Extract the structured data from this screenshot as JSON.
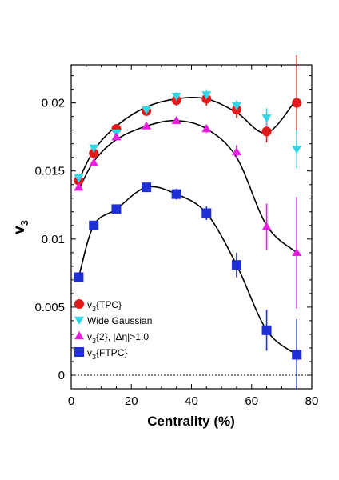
{
  "chart_data": {
    "type": "scatter",
    "xlabel": "Centrality (%)",
    "ylabel_main": "v",
    "ylabel_sub": "3",
    "xlim": [
      0,
      80
    ],
    "ylim": [
      -0.001,
      0.0228
    ],
    "xticks": [
      0,
      20,
      40,
      60,
      80
    ],
    "yticks": [
      0,
      0.005,
      0.01,
      0.015,
      0.02
    ],
    "ytick_labels": [
      "0",
      "0.005",
      "0.01",
      "0.015",
      "0.02"
    ],
    "grid": false,
    "legend_position": "bottom-left",
    "zero_line": true,
    "series": [
      {
        "legend": {
          "prefix": "v",
          "sub": "3",
          "suffix": "{TPC}"
        },
        "marker": "circle",
        "color": "#e31a1c",
        "x": [
          2.5,
          7.5,
          15,
          25,
          35,
          45,
          55,
          65,
          75
        ],
        "y": [
          0.0143,
          0.0163,
          0.0181,
          0.0194,
          0.0202,
          0.0203,
          0.0195,
          0.0179,
          0.02
        ],
        "err": [
          0.0003,
          0.0003,
          0.0003,
          0.0003,
          0.0004,
          0.0005,
          0.0006,
          0.0008,
          0.0035
        ]
      },
      {
        "legend": {
          "prefix": "Wide Gaussian",
          "sub": "",
          "suffix": ""
        },
        "marker": "triangle-down",
        "color": "#33d6e6",
        "x": [
          2.5,
          7.5,
          15,
          25,
          35,
          45,
          55,
          65,
          75
        ],
        "y": [
          0.0145,
          0.0167,
          0.0178,
          0.0195,
          0.0205,
          0.0206,
          0.0198,
          0.0189,
          0.0166
        ],
        "err": [
          0.0002,
          0.0002,
          0.0002,
          0.0003,
          0.0003,
          0.0004,
          0.0004,
          0.0007,
          0.0014
        ]
      },
      {
        "legend": {
          "prefix": "v",
          "sub": "3",
          "suffix": "{2}, |Δη|>1.0"
        },
        "marker": "triangle-up",
        "color": "#e81ee0",
        "x": [
          2.5,
          7.5,
          15,
          25,
          35,
          45,
          55,
          65,
          75
        ],
        "y": [
          0.0138,
          0.0156,
          0.0175,
          0.0183,
          0.0187,
          0.0181,
          0.0164,
          0.0109,
          0.009
        ],
        "err": [
          0.0002,
          0.0002,
          0.0002,
          0.0002,
          0.0002,
          0.0003,
          0.0005,
          0.0017,
          0.0041
        ]
      },
      {
        "legend": {
          "prefix": "v",
          "sub": "3",
          "suffix": "{FTPC}"
        },
        "marker": "square",
        "color": "#1f2fd6",
        "x": [
          2.5,
          7.5,
          15,
          25,
          35,
          45,
          55,
          65,
          75
        ],
        "y": [
          0.0072,
          0.011,
          0.0122,
          0.0138,
          0.0133,
          0.0119,
          0.0081,
          0.0033,
          0.0015
        ],
        "err": [
          0.0002,
          0.0003,
          0.0003,
          0.0003,
          0.0004,
          0.0005,
          0.0009,
          0.0015,
          0.0026
        ]
      }
    ],
    "fit_curves": [
      {
        "of": "v3{TPC}",
        "x": [
          2.5,
          7.5,
          15,
          25,
          35,
          45,
          55,
          65,
          75
        ],
        "y": [
          0.0143,
          0.0165,
          0.0183,
          0.0197,
          0.0203,
          0.0203,
          0.0193,
          0.0178,
          0.0203
        ]
      },
      {
        "of": "v3{2}",
        "x": [
          2.5,
          7.5,
          15,
          25,
          35,
          45,
          55,
          65,
          75
        ],
        "y": [
          0.0136,
          0.0157,
          0.0173,
          0.0183,
          0.0187,
          0.0181,
          0.016,
          0.011,
          0.009
        ]
      },
      {
        "of": "v3{FTPC}",
        "x": [
          2.5,
          7.5,
          15,
          25,
          35,
          45,
          55,
          65,
          75
        ],
        "y": [
          0.0072,
          0.011,
          0.0122,
          0.0138,
          0.0133,
          0.0119,
          0.0081,
          0.0033,
          0.0015
        ]
      }
    ]
  }
}
